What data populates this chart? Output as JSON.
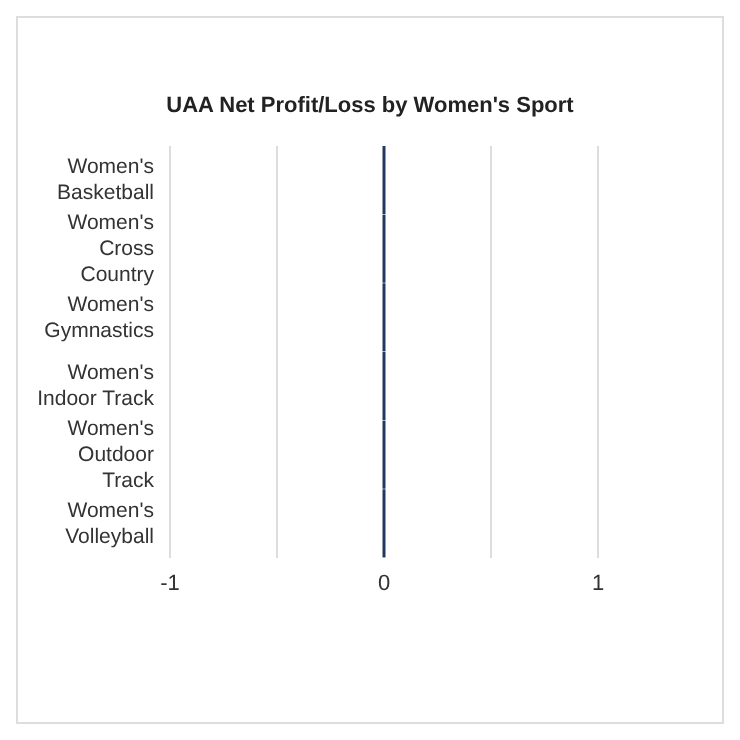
{
  "chart_data": {
    "type": "bar",
    "orientation": "horizontal",
    "title": "UAA Net Profit/Loss by Women's Sport",
    "categories": [
      "Women's Basketball",
      "Women's Cross Country",
      "Women's Gymnastics",
      "Women's Indoor Track",
      "Women's Outdoor Track",
      "Women's Volleyball"
    ],
    "values": [
      0,
      0,
      0,
      0,
      0,
      0
    ],
    "color": "#1f3a5f",
    "xlim": [
      -1,
      1
    ],
    "xticks": [
      -1,
      {
        "value": -0.5,
        "label": null
      },
      0,
      {
        "value": 0.5,
        "label": null
      },
      1
    ],
    "grid": "x"
  }
}
